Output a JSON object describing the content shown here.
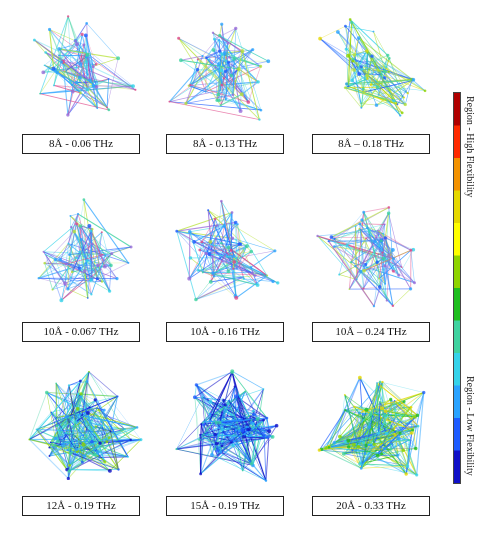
{
  "figure": {
    "panels": [
      {
        "caption": "8Å - 0.06 THz",
        "tone": "low"
      },
      {
        "caption": "8Å - 0.13 THz",
        "tone": "low"
      },
      {
        "caption": "8Å – 0.18 THz",
        "tone": "mid"
      },
      {
        "caption": "10Å - 0.067 THz",
        "tone": "low"
      },
      {
        "caption": "10Å - 0.16 THz",
        "tone": "low"
      },
      {
        "caption": "10Å – 0.24 THz",
        "tone": "low"
      },
      {
        "caption": "12Å - 0.19 THz",
        "tone": "mixed"
      },
      {
        "caption": "15Å - 0.19 THz",
        "tone": "deep"
      },
      {
        "caption": "20Å - 0.33 THz",
        "tone": "high"
      }
    ],
    "colorbar": {
      "top_label": "Region - High Flexibility",
      "bottom_label": "Region - Low Flexibility",
      "colors": [
        "#b00000",
        "#ff2a00",
        "#f39200",
        "#e6d800",
        "#ffff00",
        "#8fd400",
        "#1fbf1f",
        "#3fd3a0",
        "#35d3ea",
        "#2aa3ff",
        "#1e5cff",
        "#1010c8"
      ]
    }
  }
}
